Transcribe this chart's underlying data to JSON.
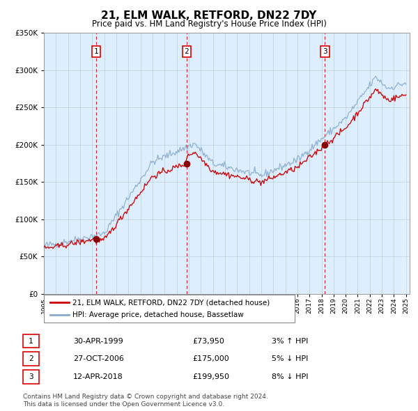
{
  "title": "21, ELM WALK, RETFORD, DN22 7DY",
  "subtitle": "Price paid vs. HM Land Registry's House Price Index (HPI)",
  "sale_dates_str": [
    "30-APR-1999",
    "27-OCT-2006",
    "12-APR-2018"
  ],
  "sale_dates_decimal": [
    1999.33,
    2006.82,
    2018.28
  ],
  "sale_prices": [
    73950,
    175000,
    199950
  ],
  "sale_labels": [
    "1",
    "2",
    "3"
  ],
  "sale_pct": [
    "3%",
    "5%",
    "8%"
  ],
  "sale_dir": [
    "↑",
    "↓",
    "↓"
  ],
  "red_line_color": "#cc0000",
  "blue_line_color": "#88aacc",
  "marker_color": "#880000",
  "bg_color": "#ddeeff",
  "vline_color": "#dd0000",
  "grid_color": "#bbccdd",
  "ylim": [
    0,
    350000
  ],
  "ylabel_ticks": [
    0,
    50000,
    100000,
    150000,
    200000,
    250000,
    300000,
    350000
  ],
  "xlabel_ticks": [
    1995,
    1996,
    1997,
    1998,
    1999,
    2000,
    2001,
    2002,
    2003,
    2004,
    2005,
    2006,
    2007,
    2008,
    2009,
    2010,
    2011,
    2012,
    2013,
    2014,
    2015,
    2016,
    2017,
    2018,
    2019,
    2020,
    2021,
    2022,
    2023,
    2024,
    2025
  ],
  "legend_label_red": "21, ELM WALK, RETFORD, DN22 7DY (detached house)",
  "legend_label_blue": "HPI: Average price, detached house, Bassetlaw",
  "footer": "Contains HM Land Registry data © Crown copyright and database right 2024.\nThis data is licensed under the Open Government Licence v3.0.",
  "t_start": 1995.0,
  "t_end": 2025.0
}
